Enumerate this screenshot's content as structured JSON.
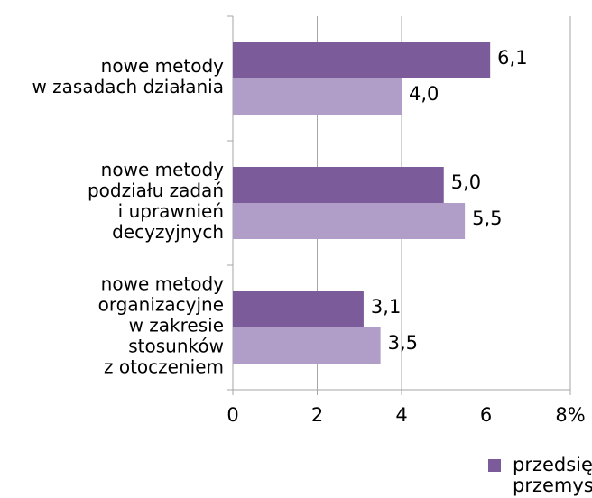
{
  "chart_data": {
    "type": "bar",
    "orientation": "horizontal",
    "categories": [
      "nowe metody\nw zasadach działania",
      "nowe metody\npodziału zadań\ni uprawnień\ndecyzyjnych",
      "nowe metody\norganizacyjne\nw zakresie\nstosunków\nz otoczeniem"
    ],
    "series": [
      {
        "name": "przedsiębiorstwa przemysłowe",
        "color": "#7b5b9a",
        "values": [
          6.1,
          5.0,
          3.1
        ],
        "value_labels": [
          "6,1",
          "5,0",
          "3,1"
        ]
      },
      {
        "color": "#b09ec8",
        "values": [
          4.0,
          5.5,
          3.5
        ],
        "value_labels": [
          "4,0",
          "5,5",
          "3,5"
        ]
      }
    ],
    "xlim": [
      0,
      8
    ],
    "xticks": [
      0,
      2,
      4,
      6,
      {
        "value": 8,
        "label": "8%"
      }
    ],
    "grid": true
  }
}
